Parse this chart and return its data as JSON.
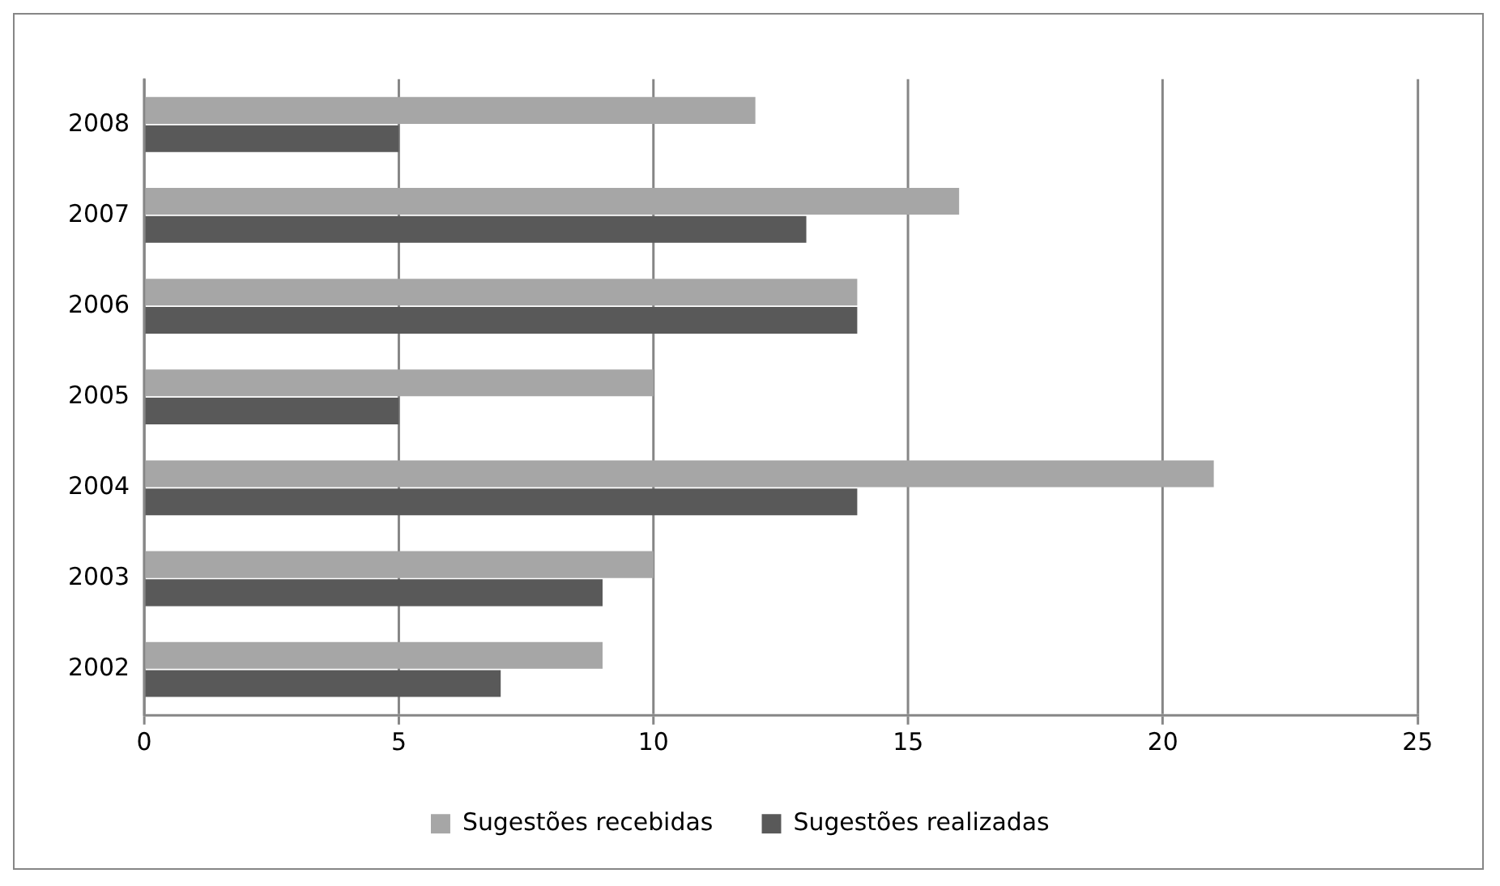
{
  "chart_data": {
    "type": "bar",
    "orientation": "horizontal",
    "categories": [
      "2008",
      "2007",
      "2006",
      "2005",
      "2004",
      "2003",
      "2002"
    ],
    "series": [
      {
        "name": "Sugestões recebidas",
        "color": "#a6a6a6",
        "values": [
          12,
          16,
          14,
          10,
          21,
          10,
          9
        ]
      },
      {
        "name": "Sugestões realizadas",
        "color": "#595959",
        "values": [
          5,
          13,
          14,
          5,
          14,
          9,
          7
        ]
      }
    ],
    "xlim": [
      0,
      25
    ],
    "xticks": [
      0,
      5,
      10,
      15,
      20,
      25
    ],
    "grid": "x",
    "legend": "bottom"
  }
}
